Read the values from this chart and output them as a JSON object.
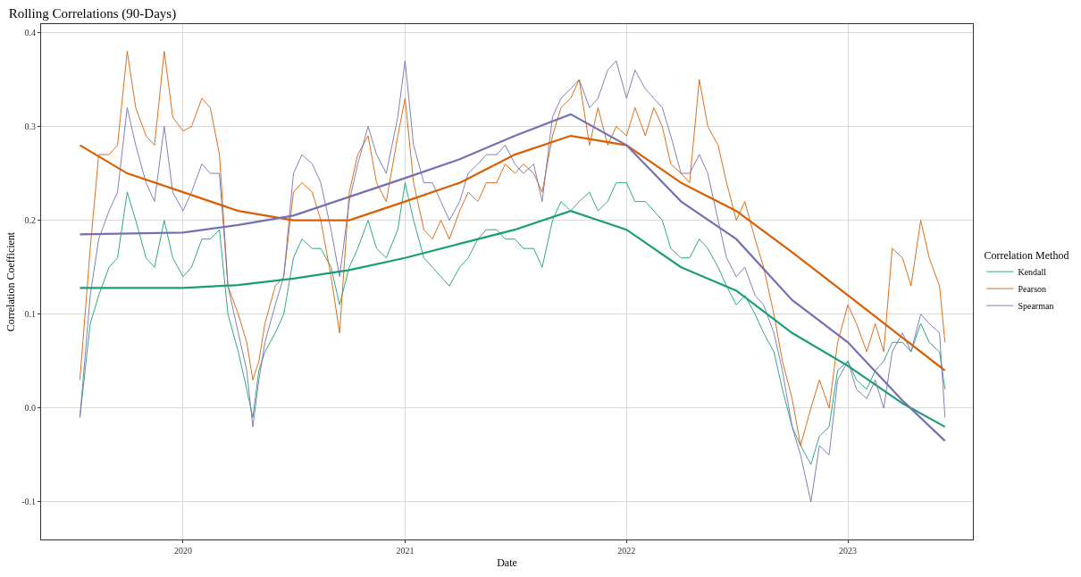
{
  "chart_data": {
    "type": "line",
    "title": "Rolling Correlations (90-Days)",
    "xlabel": "Date",
    "ylabel": "Correlation Coefficient",
    "legend_title": "Correlation Method",
    "x": [
      "2019-07-15",
      "2019-08-01",
      "2019-08-15",
      "2019-09-01",
      "2019-09-15",
      "2019-10-01",
      "2019-10-15",
      "2019-11-01",
      "2019-11-15",
      "2019-12-01",
      "2019-12-15",
      "2020-01-01",
      "2020-01-15",
      "2020-02-01",
      "2020-02-15",
      "2020-03-01",
      "2020-03-15",
      "2020-04-01",
      "2020-04-15",
      "2020-04-25",
      "2020-05-05",
      "2020-05-15",
      "2020-06-01",
      "2020-06-15",
      "2020-07-01",
      "2020-07-15",
      "2020-08-01",
      "2020-08-15",
      "2020-09-01",
      "2020-09-15",
      "2020-10-01",
      "2020-10-15",
      "2020-11-01",
      "2020-11-15",
      "2020-12-01",
      "2020-12-20",
      "2021-01-01",
      "2021-01-15",
      "2021-02-01",
      "2021-02-15",
      "2021-03-01",
      "2021-03-15",
      "2021-04-01",
      "2021-04-15",
      "2021-05-01",
      "2021-05-15",
      "2021-06-01",
      "2021-06-15",
      "2021-07-01",
      "2021-07-15",
      "2021-08-01",
      "2021-08-15",
      "2021-09-01",
      "2021-09-15",
      "2021-10-01",
      "2021-10-15",
      "2021-11-01",
      "2021-11-15",
      "2021-12-01",
      "2021-12-15",
      "2022-01-01",
      "2022-01-15",
      "2022-02-01",
      "2022-02-15",
      "2022-03-01",
      "2022-03-15",
      "2022-04-01",
      "2022-04-15",
      "2022-05-01",
      "2022-05-15",
      "2022-06-01",
      "2022-06-15",
      "2022-07-01",
      "2022-07-15",
      "2022-08-01",
      "2022-08-15",
      "2022-09-01",
      "2022-09-15",
      "2022-10-01",
      "2022-10-15",
      "2022-11-01",
      "2022-11-15",
      "2022-12-01",
      "2022-12-15",
      "2023-01-01",
      "2023-01-15",
      "2023-02-01",
      "2023-02-15",
      "2023-03-01",
      "2023-03-15",
      "2023-04-01",
      "2023-04-15",
      "2023-05-01",
      "2023-05-15",
      "2023-06-01",
      "2023-06-10"
    ],
    "series": [
      {
        "name": "Kendall",
        "color": "#1b9e77",
        "values": [
          -0.01,
          0.09,
          0.12,
          0.15,
          0.16,
          0.23,
          0.2,
          0.16,
          0.15,
          0.2,
          0.16,
          0.14,
          0.15,
          0.18,
          0.18,
          0.19,
          0.1,
          0.06,
          0.02,
          -0.01,
          0.04,
          0.06,
          0.08,
          0.1,
          0.16,
          0.18,
          0.17,
          0.17,
          0.15,
          0.11,
          0.15,
          0.17,
          0.2,
          0.17,
          0.16,
          0.19,
          0.24,
          0.2,
          0.16,
          0.15,
          0.14,
          0.13,
          0.15,
          0.16,
          0.18,
          0.19,
          0.19,
          0.18,
          0.18,
          0.17,
          0.17,
          0.15,
          0.2,
          0.22,
          0.21,
          0.22,
          0.23,
          0.21,
          0.22,
          0.24,
          0.24,
          0.22,
          0.22,
          0.21,
          0.2,
          0.17,
          0.16,
          0.16,
          0.18,
          0.17,
          0.15,
          0.13,
          0.11,
          0.12,
          0.1,
          0.08,
          0.06,
          0.02,
          -0.02,
          -0.04,
          -0.06,
          -0.03,
          -0.02,
          0.04,
          0.05,
          0.03,
          0.02,
          0.04,
          0.05,
          0.07,
          0.07,
          0.06,
          0.09,
          0.07,
          0.06,
          0.02
        ]
      },
      {
        "name": "Pearson",
        "color": "#d95f02",
        "values": [
          0.03,
          0.17,
          0.27,
          0.27,
          0.28,
          0.38,
          0.32,
          0.29,
          0.28,
          0.38,
          0.31,
          0.295,
          0.3,
          0.33,
          0.32,
          0.27,
          0.13,
          0.1,
          0.07,
          0.03,
          0.05,
          0.09,
          0.13,
          0.14,
          0.23,
          0.24,
          0.23,
          0.2,
          0.14,
          0.08,
          0.23,
          0.27,
          0.29,
          0.24,
          0.22,
          0.29,
          0.33,
          0.24,
          0.19,
          0.18,
          0.2,
          0.18,
          0.21,
          0.23,
          0.22,
          0.24,
          0.24,
          0.26,
          0.25,
          0.26,
          0.25,
          0.23,
          0.29,
          0.32,
          0.33,
          0.35,
          0.28,
          0.32,
          0.28,
          0.3,
          0.29,
          0.32,
          0.29,
          0.32,
          0.3,
          0.26,
          0.25,
          0.24,
          0.35,
          0.3,
          0.28,
          0.24,
          0.2,
          0.22,
          0.18,
          0.15,
          0.1,
          0.05,
          0.01,
          -0.04,
          0.0,
          0.03,
          0.0,
          0.07,
          0.11,
          0.09,
          0.06,
          0.09,
          0.06,
          0.17,
          0.16,
          0.13,
          0.2,
          0.16,
          0.13,
          0.07
        ]
      },
      {
        "name": "Spearman",
        "color": "#7570b3",
        "values": [
          -0.01,
          0.12,
          0.18,
          0.21,
          0.23,
          0.32,
          0.28,
          0.24,
          0.22,
          0.3,
          0.23,
          0.21,
          0.23,
          0.26,
          0.25,
          0.25,
          0.13,
          0.08,
          0.04,
          -0.02,
          0.03,
          0.07,
          0.11,
          0.14,
          0.25,
          0.27,
          0.26,
          0.24,
          0.19,
          0.14,
          0.22,
          0.26,
          0.3,
          0.27,
          0.25,
          0.31,
          0.37,
          0.28,
          0.24,
          0.24,
          0.22,
          0.2,
          0.22,
          0.25,
          0.26,
          0.27,
          0.27,
          0.28,
          0.26,
          0.25,
          0.26,
          0.22,
          0.31,
          0.33,
          0.34,
          0.35,
          0.32,
          0.33,
          0.36,
          0.37,
          0.33,
          0.36,
          0.34,
          0.33,
          0.32,
          0.29,
          0.25,
          0.25,
          0.27,
          0.25,
          0.2,
          0.16,
          0.14,
          0.15,
          0.12,
          0.11,
          0.08,
          0.04,
          -0.02,
          -0.05,
          -0.1,
          -0.04,
          -0.05,
          0.03,
          0.05,
          0.02,
          0.01,
          0.03,
          0.0,
          0.06,
          0.08,
          0.06,
          0.1,
          0.09,
          0.08,
          -0.01
        ]
      },
      {
        "type": "line",
        "color": "#1b9e77",
        "x": [
          "2019-07-15",
          "2020-01-01",
          "2020-04-01",
          "2020-07-01",
          "2020-10-01",
          "2021-01-01",
          "2021-04-01",
          "2021-07-01",
          "2021-10-01",
          "2022-01-01",
          "2022-04-01",
          "2022-07-01",
          "2022-10-01",
          "2023-01-01",
          "2023-04-01",
          "2023-06-10"
        ],
        "values": [
          0.128,
          0.128,
          0.131,
          0.138,
          0.147,
          0.16,
          0.175,
          0.19,
          0.21,
          0.19,
          0.15,
          0.125,
          0.08,
          0.045,
          0.005,
          -0.02
        ]
      },
      {
        "type": "line",
        "color": "#d95f02",
        "x": [
          "2019-07-15",
          "2019-10-01",
          "2020-01-01",
          "2020-04-01",
          "2020-07-01",
          "2020-10-01",
          "2021-01-01",
          "2021-04-01",
          "2021-07-01",
          "2021-10-01",
          "2022-01-01",
          "2022-04-01",
          "2022-07-01",
          "2022-10-01",
          "2023-01-01",
          "2023-04-01",
          "2023-06-10"
        ],
        "values": [
          0.28,
          0.25,
          0.23,
          0.21,
          0.2,
          0.2,
          0.22,
          0.24,
          0.27,
          0.29,
          0.28,
          0.24,
          0.21,
          0.166,
          0.12,
          0.075,
          0.04
        ]
      },
      {
        "type": "line",
        "color": "#7570b3",
        "x": [
          "2019-07-15",
          "2020-01-01",
          "2020-04-01",
          "2020-07-01",
          "2020-10-01",
          "2021-01-01",
          "2021-04-01",
          "2021-07-01",
          "2021-10-01",
          "2022-01-01",
          "2022-04-01",
          "2022-07-01",
          "2022-10-01",
          "2023-01-01",
          "2023-04-01",
          "2023-06-10"
        ],
        "values": [
          0.185,
          0.187,
          0.195,
          0.205,
          0.225,
          0.245,
          0.265,
          0.29,
          0.313,
          0.28,
          0.22,
          0.18,
          0.115,
          0.07,
          0.008,
          -0.035
        ]
      }
    ],
    "xlim": [
      "2019-05-12",
      "2023-07-26"
    ],
    "xticks": [
      "2020",
      "2021",
      "2022",
      "2023"
    ],
    "ylim": [
      -0.14,
      0.409
    ],
    "yticks": [
      -0.1,
      {
        "value": 0,
        "label": "0.0"
      },
      0.1,
      0.2,
      0.3,
      0.4
    ],
    "grid": true,
    "legend": "right",
    "line_style": "solid",
    "marker": "none"
  }
}
